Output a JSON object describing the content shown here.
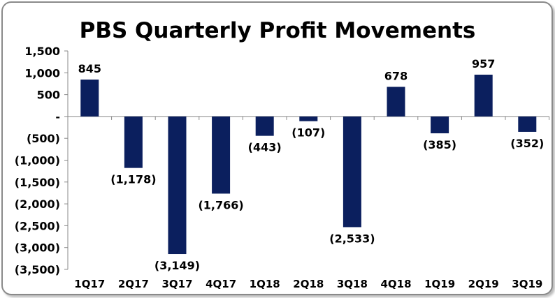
{
  "chart_data": {
    "type": "bar",
    "title": "PBS Quarterly Profit Movements",
    "xlabel": "",
    "ylabel": "",
    "categories": [
      "1Q17",
      "2Q17",
      "3Q17",
      "4Q17",
      "1Q18",
      "2Q18",
      "3Q18",
      "4Q18",
      "1Q19",
      "2Q19",
      "3Q19"
    ],
    "values": [
      845,
      -1178,
      -3149,
      -1766,
      -443,
      -107,
      -2533,
      678,
      -385,
      957,
      -352
    ],
    "data_labels": [
      "845",
      "(1,178)",
      "(3,149)",
      "(1,766)",
      "(443)",
      "(107)",
      "(2,533)",
      "678",
      "(385)",
      "957",
      "(352)"
    ],
    "ylim": [
      -3500,
      1500
    ],
    "yticks": [
      1500,
      1000,
      500,
      0,
      -500,
      -1000,
      -1500,
      -2000,
      -2500,
      -3000,
      -3500
    ],
    "ytick_labels": [
      "1,500",
      "1,000",
      "500",
      "-",
      "(500)",
      "(1,000)",
      "(1,500)",
      "(2,000)",
      "(2,500)",
      "(3,000)",
      "(3,500)"
    ],
    "grid": false,
    "legend": "none",
    "bar_color": "#0b1f5e"
  }
}
